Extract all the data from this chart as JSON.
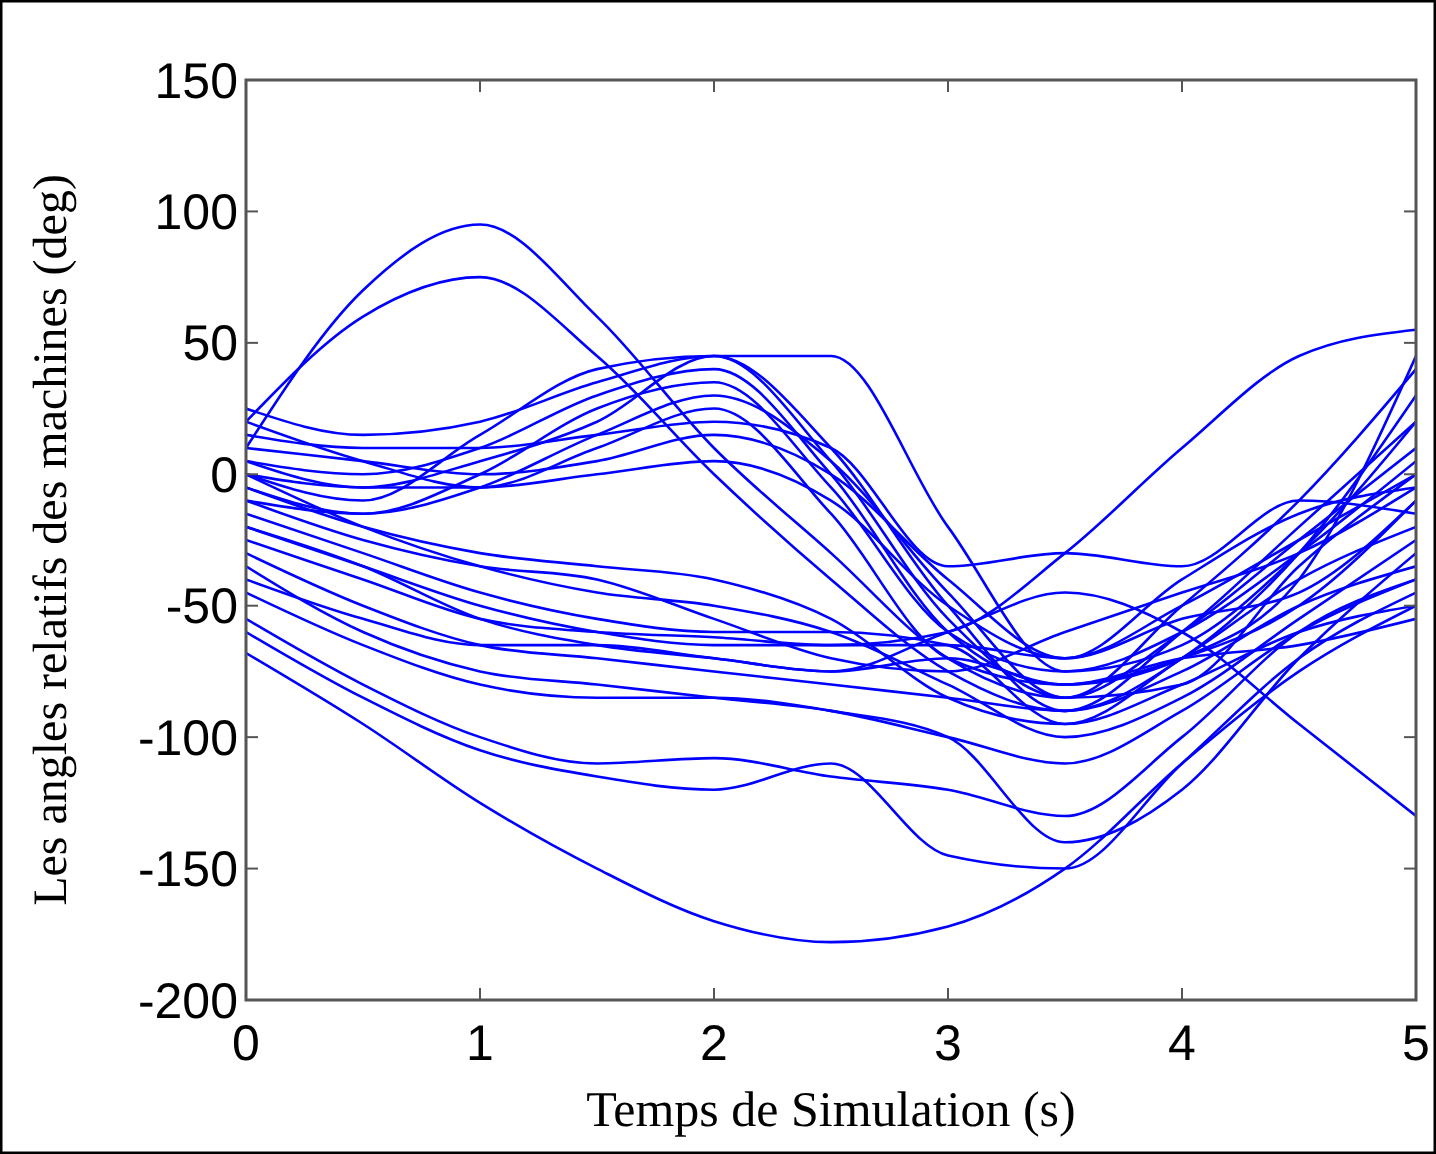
{
  "chart_data": {
    "type": "line",
    "xlabel": "Temps de Simulation (s)",
    "ylabel": "Les angles relatifs des machines (deg)",
    "x": [
      0,
      0.5,
      1,
      1.5,
      2,
      2.5,
      3,
      3.5,
      4,
      4.5,
      5
    ],
    "xlim": [
      0,
      5
    ],
    "xticks": [
      0,
      1,
      2,
      3,
      4,
      5
    ],
    "ylim": [
      -200,
      150
    ],
    "yticks": [
      -200,
      -150,
      -100,
      -50,
      0,
      50,
      100,
      150
    ],
    "grid": false,
    "line_style": "solid",
    "marker": "none",
    "series": [
      {
        "color": "#0000ff",
        "values": [
          10,
          70,
          95,
          60,
          10,
          -30,
          -70,
          -85,
          -50,
          -10,
          40
        ]
      },
      {
        "color": "#0000ff",
        "values": [
          20,
          60,
          75,
          45,
          0,
          -40,
          -75,
          -90,
          -60,
          -20,
          20
        ]
      },
      {
        "color": "#0000ff",
        "values": [
          0,
          -5,
          5,
          20,
          45,
          45,
          -20,
          -75,
          -60,
          -30,
          5
        ]
      },
      {
        "color": "#0000ff",
        "values": [
          -68,
          -95,
          -125,
          -150,
          -170,
          -178,
          -172,
          -150,
          -110,
          -75,
          -50
        ]
      },
      {
        "color": "#0000ff",
        "values": [
          -20,
          -35,
          -55,
          -65,
          -70,
          -75,
          -60,
          -45,
          -60,
          -95,
          -130
        ]
      },
      {
        "color": "#0000ff",
        "values": [
          -55,
          -80,
          -100,
          -110,
          -108,
          -115,
          -120,
          -130,
          -100,
          -60,
          -40
        ]
      },
      {
        "color": "#0000ff",
        "values": [
          -60,
          -85,
          -105,
          -115,
          -120,
          -110,
          -145,
          -150,
          -110,
          -70,
          -45
        ]
      },
      {
        "color": "#0000ff",
        "values": [
          -45,
          -65,
          -80,
          -85,
          -85,
          -90,
          -100,
          -140,
          -120,
          -70,
          -30
        ]
      },
      {
        "color": "#0000ff",
        "values": [
          -25,
          -40,
          -55,
          -60,
          -62,
          -65,
          -60,
          -30,
          10,
          45,
          55
        ]
      },
      {
        "color": "#0000ff",
        "values": [
          5,
          0,
          10,
          30,
          40,
          0,
          -60,
          -80,
          -70,
          -40,
          45
        ]
      },
      {
        "color": "#0000ff",
        "values": [
          0,
          -10,
          15,
          40,
          45,
          10,
          -50,
          -90,
          -70,
          -30,
          30
        ]
      },
      {
        "color": "#0000ff",
        "values": [
          25,
          15,
          20,
          35,
          45,
          5,
          -55,
          -85,
          -60,
          -25,
          10
        ]
      },
      {
        "color": "#0000ff",
        "values": [
          -5,
          -15,
          0,
          25,
          35,
          -5,
          -60,
          -75,
          -65,
          -30,
          20
        ]
      },
      {
        "color": "#0000ff",
        "values": [
          10,
          5,
          0,
          5,
          15,
          0,
          -40,
          -70,
          -55,
          -45,
          -10
        ]
      },
      {
        "color": "#0000ff",
        "values": [
          -10,
          -25,
          -35,
          -40,
          -55,
          -70,
          -75,
          -60,
          -45,
          -30,
          -5
        ]
      },
      {
        "color": "#0000ff",
        "values": [
          -15,
          -30,
          -45,
          -55,
          -60,
          -60,
          -65,
          -95,
          -70,
          -40,
          -20
        ]
      },
      {
        "color": "#0000ff",
        "values": [
          -20,
          -35,
          -50,
          -60,
          -65,
          -65,
          -65,
          -70,
          -50,
          -25,
          0
        ]
      },
      {
        "color": "#0000ff",
        "values": [
          15,
          10,
          10,
          15,
          20,
          10,
          -35,
          -30,
          -35,
          -10,
          -15
        ]
      },
      {
        "color": "#0000ff",
        "values": [
          0,
          -20,
          -35,
          -45,
          -50,
          -60,
          -80,
          -100,
          -85,
          -55,
          -25
        ]
      },
      {
        "color": "#0000ff",
        "values": [
          5,
          -5,
          -5,
          0,
          5,
          -10,
          -50,
          -70,
          -40,
          -15,
          -5
        ]
      },
      {
        "color": "#0000ff",
        "values": [
          -30,
          -50,
          -65,
          -70,
          -75,
          -80,
          -85,
          -90,
          -75,
          -50,
          -35
        ]
      },
      {
        "color": "#0000ff",
        "values": [
          -5,
          -20,
          -30,
          -35,
          -40,
          -55,
          -85,
          -95,
          -80,
          -60,
          -50
        ]
      },
      {
        "color": "#0000ff",
        "values": [
          20,
          5,
          -5,
          10,
          25,
          -15,
          -70,
          -80,
          -70,
          -50,
          -10
        ]
      },
      {
        "color": "#0000ff",
        "values": [
          -10,
          -15,
          -5,
          15,
          30,
          5,
          -45,
          -85,
          -80,
          -35,
          0
        ]
      },
      {
        "color": "#0000ff",
        "values": [
          -40,
          -55,
          -65,
          -65,
          -70,
          -75,
          -70,
          -80,
          -70,
          -65,
          -55
        ]
      },
      {
        "color": "#0000ff",
        "values": [
          -35,
          -60,
          -75,
          -80,
          -85,
          -90,
          -100,
          -110,
          -90,
          -60,
          -40
        ]
      }
    ]
  }
}
